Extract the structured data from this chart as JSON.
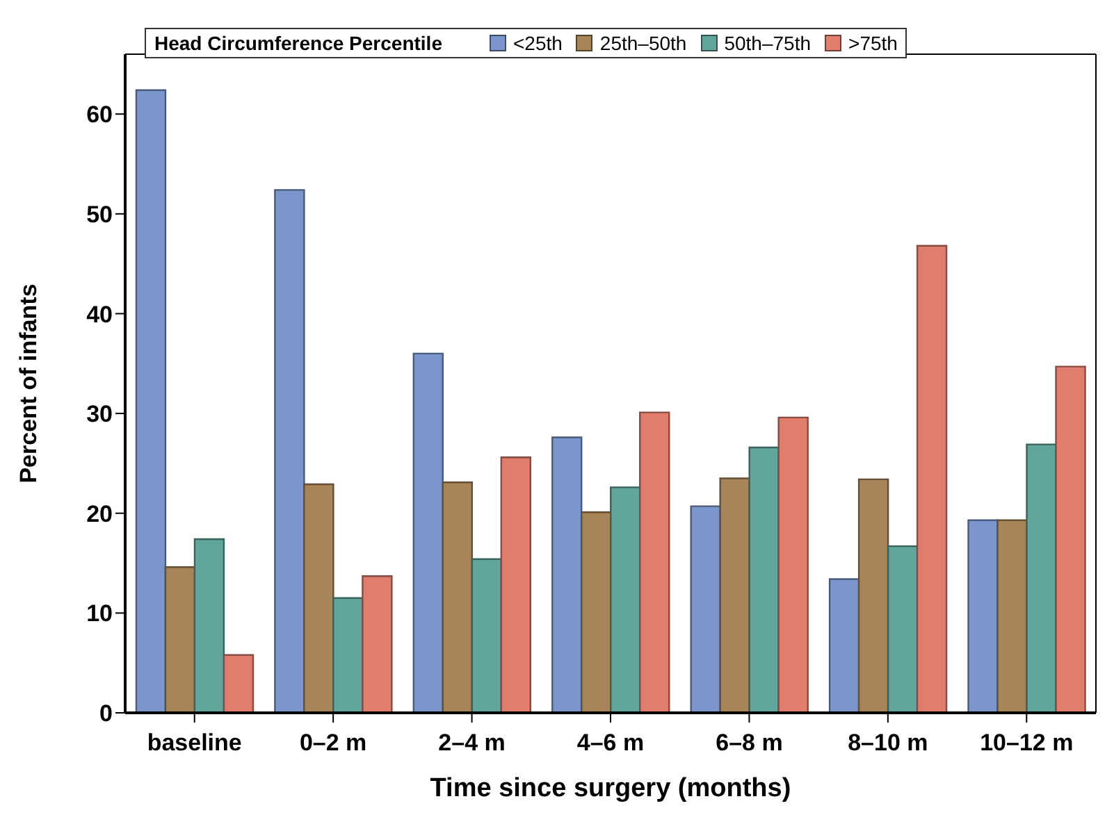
{
  "chart_data": {
    "type": "bar",
    "xlabel": "Time since surgery (months)",
    "ylabel": "Percent of infants",
    "legend_title": "Head Circumference Percentile",
    "categories": [
      "baseline",
      "0–2 m",
      "2–4 m",
      "4–6 m",
      "6–8 m",
      "8–10 m",
      "10–12 m"
    ],
    "series": [
      {
        "name": "<25th",
        "color": "#7b96cc",
        "values": [
          62.4,
          52.4,
          36.0,
          27.6,
          20.7,
          13.4,
          19.3
        ]
      },
      {
        "name": "25th–50th",
        "color": "#a88558",
        "values": [
          14.6,
          22.9,
          23.1,
          20.1,
          23.5,
          23.4,
          19.3
        ]
      },
      {
        "name": "50th–75th",
        "color": "#62a59d",
        "values": [
          17.4,
          11.5,
          15.4,
          22.6,
          26.6,
          16.7,
          26.9
        ]
      },
      {
        "name": ">75th",
        "color": "#e07d6d",
        "values": [
          5.8,
          13.7,
          25.6,
          30.1,
          29.6,
          46.8,
          34.7
        ]
      }
    ],
    "ylim": [
      0,
      66
    ],
    "yticks": [
      0,
      10,
      20,
      30,
      40,
      50,
      60
    ],
    "grid": false,
    "legend": "top"
  }
}
